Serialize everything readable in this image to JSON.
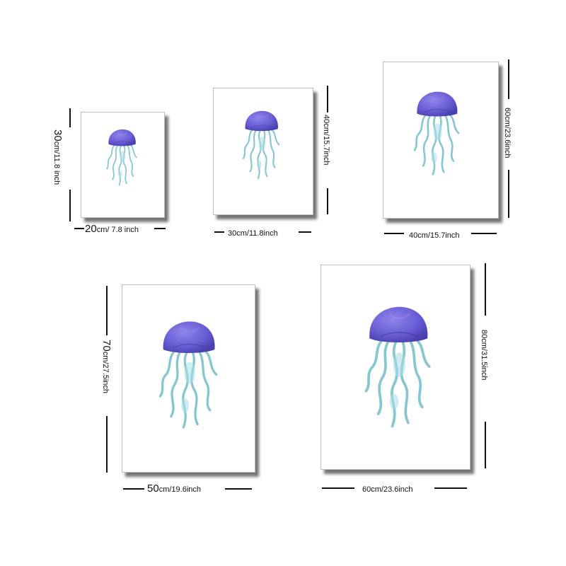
{
  "colors": {
    "bell": "#6a5fd6",
    "bell_dark": "#4a3fb0",
    "tentacle": "#7fc4cf",
    "frame_border": "#bdbdbd",
    "line": "#111111"
  },
  "icons": {
    "artwork": "jellyfish-watercolor"
  },
  "sizes": [
    {
      "width_big": "20",
      "width_small": "cm/ 7.8 inch",
      "height_big": "30",
      "height_small": "cm/11.8 inch"
    },
    {
      "width_big": "",
      "width_small": "30cm/11.8inch",
      "height_big": "",
      "height_small": "40cm/15.7inch"
    },
    {
      "width_big": "",
      "width_small": "40cm/15.7inch",
      "height_big": "",
      "height_small": "60cm/23.6inch"
    },
    {
      "width_big": "50",
      "width_small": "cm/19.6inch",
      "height_big": "70",
      "height_small": "cm/27.5inch"
    },
    {
      "width_big": "",
      "width_small": "60cm/23.6inch",
      "height_big": "",
      "height_small": "80cm/31.5inch"
    }
  ]
}
